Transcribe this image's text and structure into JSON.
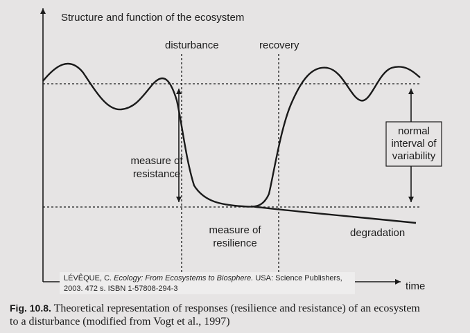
{
  "figure": {
    "y_axis_label": "Structure and function of the ecosystem",
    "x_axis_label": "time",
    "disturbance": "disturbance",
    "recovery": "recovery",
    "resistance": [
      "measure of",
      "resistance"
    ],
    "resilience": [
      "measure of",
      "resilience"
    ],
    "normal_interval": [
      "normal",
      "interval of",
      "variability"
    ],
    "degradation": "degradation"
  },
  "citation": {
    "author": "LÉVÊQUE, C.",
    "title": "Ecology: From Ecosystems to Biosphere.",
    "publisher": "USA: Science Publishers,",
    "details": "2003. 472 s. ISBN 1-57808-294-3"
  },
  "caption": {
    "label": "Fig. 10.8.",
    "lines": [
      "Theoretical representation of responses (resilience and resistance) of an ecosystem",
      "to a disturbance (modified from Vogt et al., 1997)"
    ]
  }
}
